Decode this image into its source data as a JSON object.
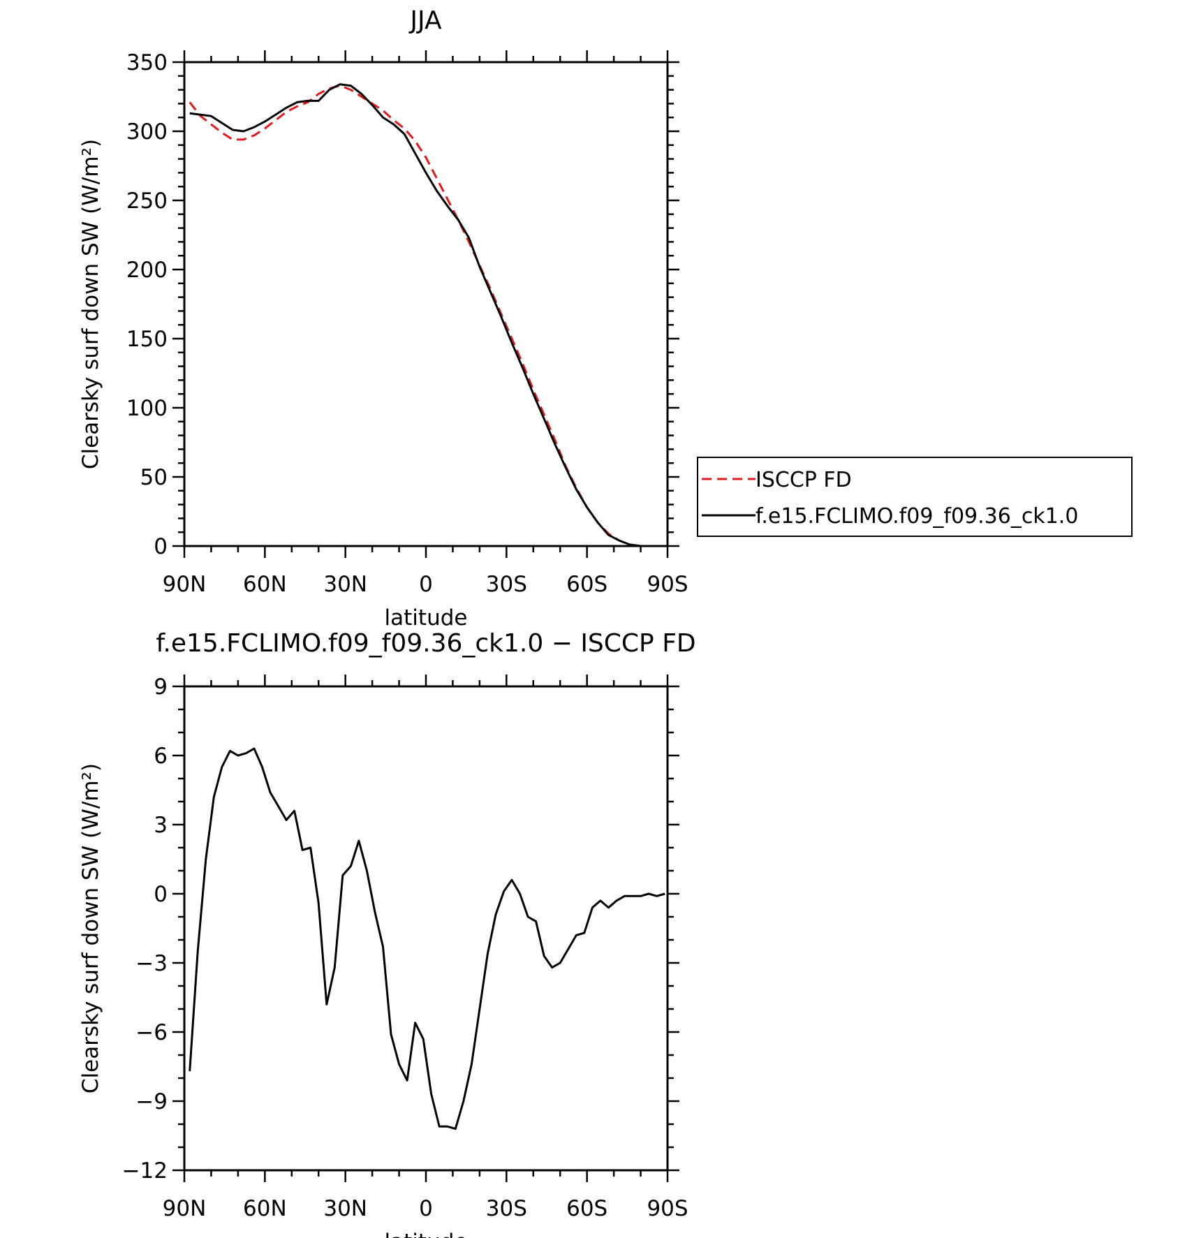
{
  "chart_data": [
    {
      "type": "line",
      "title": "JJA",
      "xlabel": "latitude",
      "ylabel": "Clearsky surf down SW (W/m²)",
      "xlim": [
        90,
        -90
      ],
      "ylim": [
        0,
        350
      ],
      "xticks": [
        90,
        60,
        30,
        0,
        -30,
        -60,
        -90
      ],
      "xtick_labels": [
        "90N",
        "60N",
        "30N",
        "0",
        "30S",
        "60S",
        "90S"
      ],
      "yticks": [
        0,
        50,
        100,
        150,
        200,
        250,
        300,
        350
      ],
      "ytick_labels": [
        "0",
        "50",
        "100",
        "150",
        "200",
        "250",
        "300",
        "350"
      ],
      "legend_position": "right",
      "series": [
        {
          "name": "ISCCP FD",
          "color": "#e31a1c",
          "dash": "dashed",
          "x": [
            88,
            84,
            80,
            76,
            72,
            68,
            64,
            60,
            56,
            52,
            48,
            44,
            40,
            36,
            32,
            28,
            24,
            20,
            16,
            12,
            8,
            4,
            0,
            -4,
            -8,
            -12,
            -16,
            -20,
            -24,
            -28,
            -32,
            -36,
            -40,
            -44,
            -48,
            -52,
            -56,
            -60,
            -64,
            -68,
            -72,
            -76,
            -80,
            -84,
            -88
          ],
          "y": [
            321,
            311,
            305,
            299,
            294,
            294,
            297,
            302,
            308,
            314,
            318,
            321,
            327,
            331,
            333,
            330,
            325,
            320,
            315,
            308,
            302,
            293,
            281,
            266,
            251,
            236,
            220,
            203,
            186,
            168,
            150,
            132,
            113,
            95,
            77,
            58,
            42,
            28,
            17,
            9,
            4,
            1,
            0,
            0,
            0
          ]
        },
        {
          "name": "f.e15.FCLIMO.f09_f09.36_ck1.0",
          "color": "#000000",
          "dash": "solid",
          "x": [
            88,
            84,
            80,
            76,
            72,
            68,
            64,
            60,
            56,
            52,
            48,
            44,
            40,
            36,
            32,
            28,
            24,
            20,
            16,
            12,
            8,
            4,
            0,
            -4,
            -8,
            -12,
            -16,
            -20,
            -24,
            -28,
            -32,
            -36,
            -40,
            -44,
            -48,
            -52,
            -56,
            -60,
            -64,
            -68,
            -72,
            -76,
            -80,
            -84,
            -88
          ],
          "y": [
            313,
            312,
            311,
            306,
            301,
            300,
            303,
            307,
            312,
            317,
            321,
            322,
            322,
            330,
            334,
            333,
            327,
            319,
            310,
            305,
            298,
            284,
            270,
            257,
            246,
            236,
            223,
            202,
            184,
            166,
            147,
            129,
            110,
            92,
            74,
            57,
            41,
            28,
            17,
            8,
            4,
            1,
            0,
            0,
            0
          ]
        }
      ]
    },
    {
      "type": "line",
      "title": "f.e15.FCLIMO.f09_f09.36_ck1.0 − ISCCP FD",
      "xlabel": "latitude",
      "ylabel": "Clearsky surf down SW (W/m²)",
      "xlim": [
        90,
        -90
      ],
      "ylim": [
        -12,
        9
      ],
      "xticks": [
        90,
        60,
        30,
        0,
        -30,
        -60,
        -90
      ],
      "xtick_labels": [
        "90N",
        "60N",
        "30N",
        "0",
        "30S",
        "60S",
        "90S"
      ],
      "yticks": [
        -12,
        -9,
        -6,
        -3,
        0,
        3,
        6,
        9
      ],
      "ytick_labels": [
        "−12",
        "−9",
        "−6",
        "−3",
        "0",
        "3",
        "6",
        "9"
      ],
      "series": [
        {
          "color": "#000000",
          "dash": "solid",
          "x": [
            88,
            85,
            82,
            79,
            76,
            73,
            70,
            67,
            64,
            61,
            58,
            55,
            52,
            49,
            46,
            43,
            40,
            37,
            34,
            31,
            28,
            25,
            22,
            19,
            16,
            13,
            10,
            7,
            4,
            1,
            -2,
            -5,
            -8,
            -11,
            -14,
            -17,
            -20,
            -23,
            -26,
            -29,
            -32,
            -35,
            -38,
            -41,
            -44,
            -47,
            -50,
            -53,
            -56,
            -59,
            -62,
            -65,
            -68,
            -71,
            -74,
            -77,
            -80,
            -83,
            -86,
            -89
          ],
          "y": [
            -7.7,
            -2.5,
            1.5,
            4.2,
            5.5,
            6.2,
            6.0,
            6.1,
            6.3,
            5.5,
            4.4,
            3.8,
            3.2,
            3.6,
            1.9,
            2.0,
            -0.4,
            -4.8,
            -3.2,
            0.8,
            1.2,
            2.3,
            1.0,
            -0.8,
            -2.3,
            -6.1,
            -7.4,
            -8.1,
            -5.6,
            -6.3,
            -8.7,
            -10.1,
            -10.1,
            -10.2,
            -9.0,
            -7.4,
            -5.0,
            -2.6,
            -0.9,
            0.1,
            0.6,
            0.0,
            -1.0,
            -1.2,
            -2.7,
            -3.2,
            -3.0,
            -2.4,
            -1.8,
            -1.7,
            -0.6,
            -0.3,
            -0.6,
            -0.3,
            -0.1,
            -0.1,
            -0.1,
            0.0,
            -0.1,
            0.0
          ]
        }
      ]
    }
  ]
}
